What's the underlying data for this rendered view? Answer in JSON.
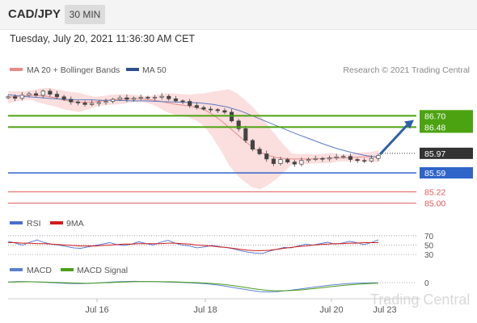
{
  "header": {
    "symbol": "CAD/JPY",
    "timeframe": "30 MIN"
  },
  "timestamp": "Tuesday, July 20, 2021 11:36:30 AM CET",
  "legend": {
    "bb": "MA 20 + Bollinger Bands",
    "ma50": "MA 50",
    "rsi": "RSI",
    "rsi_ma": "9MA",
    "macd": "MACD",
    "macd_signal": "MACD Signal"
  },
  "copyright": "Research © 2021 Trading Central",
  "watermark": "Trading Central",
  "colors": {
    "bb_band": "#fbdada",
    "ma20": "#e78b8b",
    "ma50": "#5b79c2",
    "rsi": "#4a6fd1",
    "rsi_ma": "#d11b1b",
    "macd": "#5b7fd0",
    "macd_signal": "#4c9e1c",
    "green_level": "#4ca311",
    "blue_level": "#2f64c8",
    "red_level": "#e05a5a",
    "arrow": "#2f5fa8",
    "current": "#333333"
  },
  "chart_data": [
    {
      "type": "line",
      "subtype": "candlestick",
      "title": "CAD/JPY",
      "x_ticks": [
        "Jul 16",
        "Jul 18",
        "Jul 20",
        "Jul 23"
      ],
      "ylim": [
        84.9,
        87.35
      ],
      "series": [
        {
          "name": "Price (close)",
          "values": [
            87.07,
            87.04,
            87.1,
            87.13,
            87.1,
            87.18,
            87.12,
            87.07,
            87.02,
            86.97,
            86.95,
            86.92,
            86.94,
            86.96,
            86.98,
            87.02,
            87.05,
            87.02,
            87.04,
            87.06,
            87.05,
            87.06,
            87.08,
            87.03,
            86.99,
            86.98,
            86.9,
            86.86,
            86.83,
            86.82,
            86.8,
            86.77,
            86.6,
            86.45,
            86.22,
            86.05,
            85.96,
            85.86,
            85.77,
            85.85,
            85.8,
            85.76,
            85.83,
            85.85,
            85.87,
            85.86,
            85.88,
            85.9,
            85.91,
            85.85,
            85.83,
            85.82,
            85.87,
            85.93
          ]
        },
        {
          "name": "MA 20",
          "values": [
            87.06,
            87.08,
            87.09,
            87.1,
            87.09,
            87.08,
            87.05,
            87.01,
            86.98,
            86.96,
            86.96,
            86.97,
            86.99,
            87.01,
            87.02,
            87.03,
            87.04,
            87.03,
            87.01,
            86.99,
            86.96,
            86.93,
            86.91,
            86.89,
            86.86,
            86.81,
            86.72,
            86.61,
            86.48,
            86.35,
            86.22,
            86.09,
            85.99,
            85.93,
            85.89,
            85.87,
            85.86,
            85.86,
            85.86,
            85.86,
            85.87,
            85.88,
            85.88,
            85.88,
            85.89,
            85.9,
            85.9,
            85.91
          ]
        },
        {
          "name": "MA 50",
          "values": [
            87.11,
            87.08,
            87.06,
            87.04,
            87.02,
            87.01,
            87.01,
            87.0,
            87.0,
            86.99,
            86.99,
            86.98,
            86.97,
            86.96,
            86.95,
            86.92,
            86.87,
            86.79,
            86.68,
            86.57,
            86.46,
            86.35,
            86.25,
            86.15,
            86.06,
            85.99,
            85.93,
            85.89
          ]
        }
      ],
      "levels": [
        {
          "label": "86.70",
          "value": 86.7,
          "kind": "resistance"
        },
        {
          "label": "86.48",
          "value": 86.48,
          "kind": "resistance"
        },
        {
          "label": "85.97",
          "value": 85.97,
          "kind": "current"
        },
        {
          "label": "85.59",
          "value": 85.59,
          "kind": "support"
        },
        {
          "label": "85.22",
          "value": 85.22,
          "kind": "support"
        },
        {
          "label": "85.00",
          "value": 85.0,
          "kind": "support"
        }
      ]
    },
    {
      "type": "line",
      "title": "RSI",
      "ylim": [
        25,
        80
      ],
      "levels": [
        {
          "label": "70",
          "value": 70
        },
        {
          "label": "50",
          "value": 50
        },
        {
          "label": "30",
          "value": 30
        }
      ],
      "series": [
        {
          "name": "RSI",
          "values": [
            58,
            54,
            50,
            56,
            61,
            55,
            52,
            50,
            47,
            44,
            43,
            46,
            49,
            52,
            55,
            51,
            49,
            52,
            57,
            53,
            50,
            56,
            60,
            54,
            50,
            48,
            44,
            46,
            49,
            47,
            45,
            42,
            38,
            35,
            33,
            32,
            37,
            41,
            45,
            44,
            48,
            52,
            50,
            53,
            56,
            52,
            54,
            58,
            55,
            51,
            55,
            61
          ]
        },
        {
          "name": "9MA",
          "values": [
            55,
            55,
            54,
            54,
            53,
            53,
            52,
            51,
            50,
            49,
            48,
            48,
            48,
            49,
            50,
            51,
            52,
            52,
            53,
            53,
            53,
            53,
            54,
            54,
            53,
            52,
            50,
            49,
            48,
            46,
            45,
            43,
            41,
            39,
            38,
            38,
            39,
            41,
            43,
            45,
            47,
            48,
            50,
            51,
            52,
            53,
            53,
            54,
            54,
            55,
            55,
            55
          ]
        }
      ]
    },
    {
      "type": "line",
      "title": "MACD",
      "ylim": [
        -1.0,
        0.5
      ],
      "levels": [
        {
          "label": "0",
          "value": 0
        }
      ],
      "series": [
        {
          "name": "MACD",
          "values": [
            0.05,
            0.08,
            0.09,
            0.07,
            0.05,
            0.02,
            -0.02,
            -0.05,
            -0.07,
            -0.08,
            -0.06,
            -0.03,
            0.0,
            0.04,
            0.07,
            0.09,
            0.1,
            0.09,
            0.08,
            0.07,
            0.05,
            0.03,
            0.01,
            -0.02,
            -0.05,
            -0.09,
            -0.14,
            -0.22,
            -0.32,
            -0.42,
            -0.52,
            -0.62,
            -0.7,
            -0.72,
            -0.7,
            -0.64,
            -0.58,
            -0.5,
            -0.42,
            -0.34,
            -0.26,
            -0.19,
            -0.13,
            -0.08,
            -0.05,
            -0.03,
            -0.02,
            -0.01
          ]
        },
        {
          "name": "MACD Signal",
          "values": [
            0.04,
            0.05,
            0.06,
            0.06,
            0.05,
            0.04,
            0.02,
            0.0,
            -0.02,
            -0.04,
            -0.05,
            -0.04,
            -0.02,
            0.0,
            0.03,
            0.05,
            0.07,
            0.08,
            0.08,
            0.08,
            0.07,
            0.06,
            0.04,
            0.02,
            0.0,
            -0.03,
            -0.07,
            -0.12,
            -0.19,
            -0.27,
            -0.36,
            -0.45,
            -0.54,
            -0.6,
            -0.63,
            -0.63,
            -0.61,
            -0.57,
            -0.51,
            -0.45,
            -0.38,
            -0.31,
            -0.25,
            -0.19,
            -0.14,
            -0.1,
            -0.07,
            -0.04
          ]
        }
      ]
    }
  ]
}
